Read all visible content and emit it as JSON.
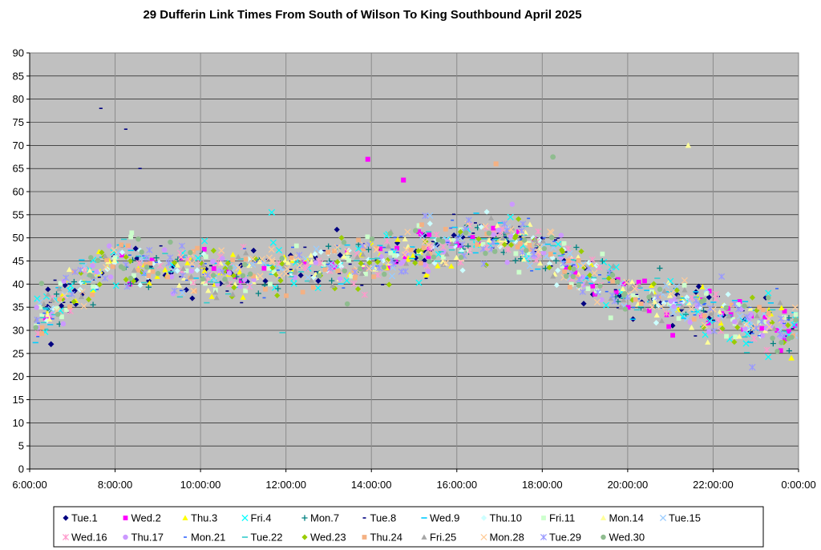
{
  "chart_data": {
    "type": "scatter",
    "title": "29 Dufferin Link Times From South of Wilson To King Southbound April 2025",
    "xlabel": "",
    "ylabel": "",
    "xlim": [
      "6:00:00",
      "0:00:00"
    ],
    "ylim": [
      0,
      90
    ],
    "x_ticks": [
      "6:00:00",
      "8:00:00",
      "10:00:00",
      "12:00:00",
      "14:00:00",
      "16:00:00",
      "18:00:00",
      "20:00:00",
      "22:00:00",
      "0:00:00"
    ],
    "y_ticks": [
      "0",
      "5",
      "10",
      "15",
      "20",
      "25",
      "30",
      "35",
      "40",
      "45",
      "50",
      "55",
      "60",
      "65",
      "70",
      "75",
      "80",
      "85",
      "90"
    ],
    "grid": "horizontal and vertical",
    "plot_background": "#c0c0c0",
    "legend_position": "bottom",
    "trend_by_hour": [
      {
        "x": "6:00:00",
        "y": 32
      },
      {
        "x": "7:00:00",
        "y": 38
      },
      {
        "x": "8:00:00",
        "y": 46
      },
      {
        "x": "9:00:00",
        "y": 44
      },
      {
        "x": "10:00:00",
        "y": 43
      },
      {
        "x": "11:00:00",
        "y": 43
      },
      {
        "x": "12:00:00",
        "y": 43
      },
      {
        "x": "13:00:00",
        "y": 44
      },
      {
        "x": "14:00:00",
        "y": 45
      },
      {
        "x": "15:00:00",
        "y": 47
      },
      {
        "x": "16:00:00",
        "y": 49
      },
      {
        "x": "17:00:00",
        "y": 51
      },
      {
        "x": "18:00:00",
        "y": 48
      },
      {
        "x": "19:00:00",
        "y": 42
      },
      {
        "x": "20:00:00",
        "y": 38
      },
      {
        "x": "21:00:00",
        "y": 36
      },
      {
        "x": "22:00:00",
        "y": 34
      },
      {
        "x": "23:00:00",
        "y": 31
      },
      {
        "x": "0:00:00",
        "y": 31
      }
    ],
    "notable_points": [
      {
        "series": "Tue.8",
        "x": "7:40:00",
        "y": 78
      },
      {
        "series": "Tue.8",
        "x": "8:15:00",
        "y": 73.5
      },
      {
        "series": "Tue.8",
        "x": "8:35:00",
        "y": 65
      },
      {
        "series": "Mon.14",
        "x": "21:25:00",
        "y": 70
      },
      {
        "series": "Wed.2",
        "x": "13:55:00",
        "y": 67
      },
      {
        "series": "Wed.30",
        "x": "18:15:00",
        "y": 67.5
      },
      {
        "series": "Thu.24",
        "x": "16:55:00",
        "y": 66
      },
      {
        "series": "Wed.2",
        "x": "14:45:00",
        "y": 62.5
      },
      {
        "series": "Fri.4",
        "x": "11:40:00",
        "y": 55.5
      },
      {
        "series": "Tue.22",
        "x": "11:55:00",
        "y": 29.5
      },
      {
        "series": "Tue.1",
        "x": "6:30:00",
        "y": 27
      },
      {
        "series": "Tue.29",
        "x": "22:55:00",
        "y": 22
      },
      {
        "series": "Thu.3",
        "x": "23:50:00",
        "y": 24
      }
    ],
    "series": [
      {
        "name": "Tue.1",
        "color": "#000080",
        "marker": "diamond"
      },
      {
        "name": "Wed.2",
        "color": "#ff00ff",
        "marker": "square"
      },
      {
        "name": "Thu.3",
        "color": "#ffff00",
        "marker": "triangle"
      },
      {
        "name": "Fri.4",
        "color": "#00ffff",
        "marker": "x"
      },
      {
        "name": "Mon.7",
        "color": "#008080",
        "marker": "plus"
      },
      {
        "name": "Tue.8",
        "color": "#000080",
        "marker": "dash-short"
      },
      {
        "name": "Wed.9",
        "color": "#00ccff",
        "marker": "dash"
      },
      {
        "name": "Thu.10",
        "color": "#ccffff",
        "marker": "diamond"
      },
      {
        "name": "Fri.11",
        "color": "#ccffcc",
        "marker": "square"
      },
      {
        "name": "Mon.14",
        "color": "#ffff99",
        "marker": "triangle"
      },
      {
        "name": "Tue.15",
        "color": "#99ccff",
        "marker": "x"
      },
      {
        "name": "Wed.16",
        "color": "#ff99cc",
        "marker": "star"
      },
      {
        "name": "Thu.17",
        "color": "#cc99ff",
        "marker": "circle"
      },
      {
        "name": "Mon.21",
        "color": "#3366ff",
        "marker": "dash-short"
      },
      {
        "name": "Tue.22",
        "color": "#33cccc",
        "marker": "dash"
      },
      {
        "name": "Wed.23",
        "color": "#99cc00",
        "marker": "diamond"
      },
      {
        "name": "Thu.24",
        "color": "#f4b183",
        "marker": "square"
      },
      {
        "name": "Fri.25",
        "color": "#a6a6a6",
        "marker": "triangle"
      },
      {
        "name": "Mon.28",
        "color": "#ffcc99",
        "marker": "x"
      },
      {
        "name": "Tue.29",
        "color": "#9999ff",
        "marker": "star"
      },
      {
        "name": "Wed.30",
        "color": "#8fbc8f",
        "marker": "circle"
      }
    ]
  }
}
